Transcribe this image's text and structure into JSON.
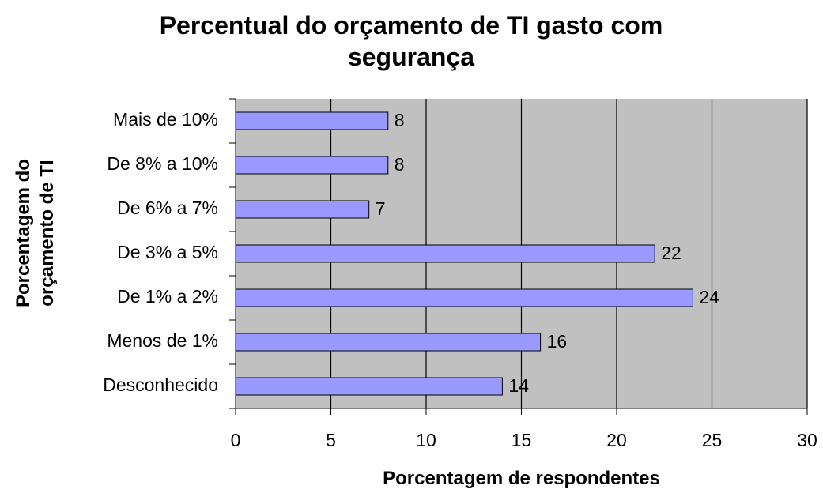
{
  "chart_data": {
    "type": "bar",
    "orientation": "horizontal",
    "title": "Percentual do orçamento de TI gasto com segurança",
    "x_label": "Porcentagem de respondentes",
    "y_label": "Porcentagem do orçamento de TI",
    "categories": [
      "Mais de 10%",
      "De 8% a 10%",
      "De 6% a 7%",
      "De 3% a 5%",
      "De 1% a 2%",
      "Menos de 1%",
      "Desconhecido"
    ],
    "values": [
      8,
      8,
      7,
      22,
      24,
      16,
      14
    ],
    "color": "#9999ff",
    "xlim": [
      0,
      30
    ],
    "xticks": [
      0,
      5,
      10,
      15,
      20,
      25,
      30
    ],
    "grid": true
  }
}
